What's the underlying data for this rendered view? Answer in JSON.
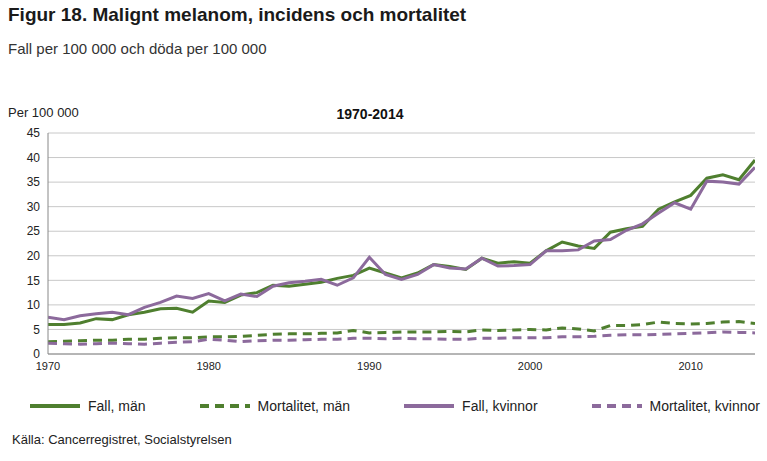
{
  "chart_data": {
    "type": "line",
    "title": "Figur 18. Malignt melanom, incidens och mortalitet",
    "subtitle": "Fall per 100 000 och döda per 100 000",
    "chart_title": "1970-2014",
    "y_label": "Per 100 000",
    "source": "Källa: Cancerregistret, Socialstyrelsen",
    "x": [
      1970,
      1971,
      1972,
      1973,
      1974,
      1975,
      1976,
      1977,
      1978,
      1979,
      1980,
      1981,
      1982,
      1983,
      1984,
      1985,
      1986,
      1987,
      1988,
      1989,
      1990,
      1991,
      1992,
      1993,
      1994,
      1995,
      1996,
      1997,
      1998,
      1999,
      2000,
      2001,
      2002,
      2003,
      2004,
      2005,
      2006,
      2007,
      2008,
      2009,
      2010,
      2011,
      2012,
      2013,
      2014
    ],
    "series": [
      {
        "name": "Fall, män",
        "color": "#4f7f2f",
        "line_style": "solid",
        "values": [
          6,
          6,
          6.3,
          7.2,
          7,
          8,
          8.5,
          9.2,
          9.3,
          8.5,
          10.8,
          10.5,
          12,
          12.5,
          14,
          13.8,
          14.2,
          14.6,
          15.4,
          16,
          17.5,
          16.5,
          15.5,
          16.5,
          18.2,
          17.8,
          17.2,
          19.5,
          18.5,
          18.8,
          18.5,
          21,
          22.8,
          22,
          21.5,
          24.8,
          25.5,
          26,
          29.5,
          31,
          32.3,
          35.8,
          36.5,
          35.5,
          39.5
        ]
      },
      {
        "name": "Mortalitet, män",
        "color": "#4f7f2f",
        "line_style": "dashed",
        "values": [
          2.5,
          2.6,
          2.7,
          2.8,
          2.8,
          3,
          3,
          3.2,
          3.3,
          3.3,
          3.5,
          3.5,
          3.6,
          3.8,
          4,
          4.1,
          4.1,
          4.2,
          4.3,
          4.8,
          4.3,
          4.4,
          4.5,
          4.5,
          4.5,
          4.6,
          4.5,
          4.9,
          4.8,
          4.9,
          5,
          4.9,
          5.3,
          5.1,
          4.7,
          5.8,
          5.8,
          6,
          6.5,
          6.2,
          6.1,
          6.2,
          6.5,
          6.6,
          6.2
        ]
      },
      {
        "name": "Fall, kvinnor",
        "color": "#8c6a9c",
        "line_style": "solid",
        "values": [
          7.5,
          7,
          7.8,
          8.2,
          8.5,
          8,
          9.5,
          10.5,
          11.8,
          11.3,
          12.3,
          10.8,
          12.2,
          11.7,
          13.8,
          14.5,
          14.8,
          15.2,
          14,
          15.5,
          19.7,
          16.2,
          15.2,
          16.2,
          18.2,
          17.5,
          17.3,
          19.5,
          17.9,
          18,
          18.2,
          21,
          21,
          21.2,
          23,
          23.3,
          25.2,
          26.5,
          28.7,
          30.8,
          29.5,
          35.2,
          35,
          34.6,
          38
        ]
      },
      {
        "name": "Mortalitet, kvinnor",
        "color": "#8c6a9c",
        "line_style": "dashed",
        "values": [
          2.2,
          2.1,
          2,
          2.1,
          2.2,
          2.1,
          2,
          2.2,
          2.4,
          2.5,
          3,
          2.8,
          2.5,
          2.7,
          2.8,
          2.8,
          2.9,
          3,
          3,
          3.2,
          3.2,
          3.1,
          3.2,
          3.1,
          3.1,
          3,
          3,
          3.2,
          3.2,
          3.3,
          3.3,
          3.3,
          3.5,
          3.5,
          3.6,
          3.8,
          3.9,
          3.9,
          4,
          4.1,
          4.2,
          4.3,
          4.5,
          4.4,
          4.3
        ]
      }
    ],
    "xlim": [
      1970,
      2014
    ],
    "xticks": [
      1970,
      1980,
      1990,
      2000,
      2010
    ],
    "ylim": [
      0,
      45
    ],
    "yticks": [
      0,
      5,
      10,
      15,
      20,
      25,
      30,
      35,
      40,
      45
    ],
    "grid": true,
    "legend": "bottom"
  }
}
